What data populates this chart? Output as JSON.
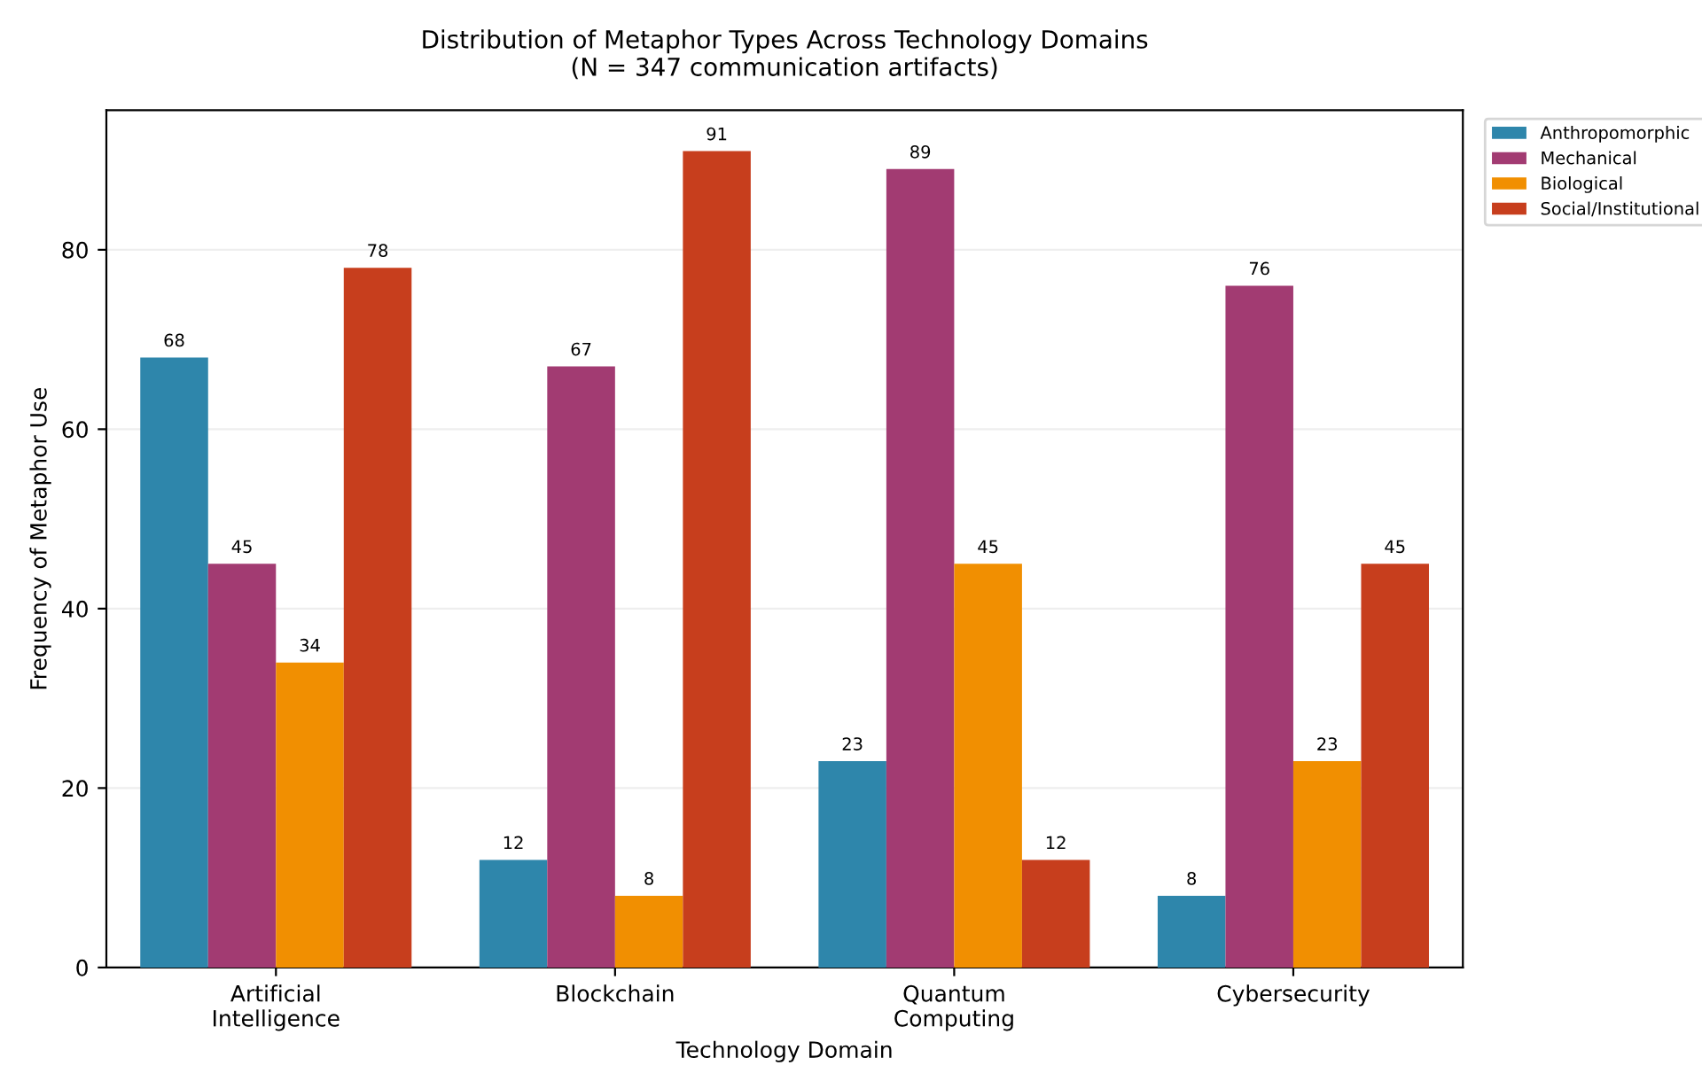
{
  "chart_data": {
    "type": "bar",
    "title": "Distribution of Metaphor Types Across Technology Domains\n(N = 347 communication artifacts)",
    "xlabel": "Technology Domain",
    "ylabel": "Frequency of Metaphor Use",
    "categories": [
      "Artificial\nIntelligence",
      "Blockchain",
      "Quantum\nComputing",
      "Cybersecurity"
    ],
    "series": [
      {
        "name": "Anthropomorphic",
        "color": "#2e86ab",
        "values": [
          68,
          12,
          23,
          8
        ]
      },
      {
        "name": "Mechanical",
        "color": "#a23b72",
        "values": [
          45,
          67,
          89,
          76
        ]
      },
      {
        "name": "Biological",
        "color": "#f18f01",
        "values": [
          34,
          8,
          45,
          23
        ]
      },
      {
        "name": "Social/Institutional",
        "color": "#c73e1d",
        "values": [
          78,
          91,
          12,
          45
        ]
      }
    ],
    "ylim": [
      0,
      95.55
    ],
    "yticks": [
      0,
      20,
      40,
      60,
      80
    ],
    "grid": "y",
    "legend": "top right",
    "data_labels": true
  }
}
